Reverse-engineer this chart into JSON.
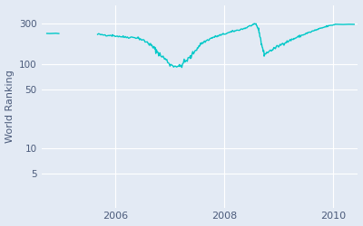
{
  "ylabel": "World Ranking",
  "bg_color": "#e3eaf4",
  "line_color": "#00c8c8",
  "line_width": 1.0,
  "yticks": [
    5,
    10,
    50,
    100,
    300
  ],
  "ylim_bottom": 2,
  "ylim_top": 500,
  "xlim": [
    2004.65,
    2010.45
  ],
  "xticks": [
    2006,
    2008,
    2010
  ],
  "grid_color": "#ffffff",
  "segments": [
    [
      2004.75,
      2004.97,
      230,
      230,
      5,
      1
    ],
    [
      2005.68,
      2005.95,
      225,
      218,
      15,
      3
    ],
    [
      2005.95,
      2006.15,
      218,
      210,
      12,
      3
    ],
    [
      2006.15,
      2006.42,
      210,
      205,
      15,
      3
    ],
    [
      2006.42,
      2006.62,
      205,
      175,
      15,
      4
    ],
    [
      2006.62,
      2006.82,
      175,
      130,
      20,
      5
    ],
    [
      2006.82,
      2007.02,
      130,
      98,
      15,
      4
    ],
    [
      2007.02,
      2007.18,
      98,
      93,
      10,
      3
    ],
    [
      2007.18,
      2007.38,
      93,
      120,
      15,
      4
    ],
    [
      2007.38,
      2007.58,
      120,
      175,
      15,
      4
    ],
    [
      2007.58,
      2007.78,
      175,
      205,
      15,
      3
    ],
    [
      2007.78,
      2007.98,
      205,
      225,
      15,
      3
    ],
    [
      2007.98,
      2008.18,
      225,
      245,
      15,
      3
    ],
    [
      2008.18,
      2008.38,
      245,
      265,
      15,
      3
    ],
    [
      2008.38,
      2008.52,
      265,
      292,
      10,
      3
    ],
    [
      2008.52,
      2008.58,
      292,
      297,
      5,
      2
    ],
    [
      2008.58,
      2008.63,
      297,
      255,
      8,
      4
    ],
    [
      2008.63,
      2008.68,
      255,
      175,
      8,
      5
    ],
    [
      2008.68,
      2008.73,
      175,
      130,
      8,
      4
    ],
    [
      2008.73,
      2008.88,
      130,
      148,
      10,
      3
    ],
    [
      2008.88,
      2009.08,
      148,
      175,
      15,
      3
    ],
    [
      2009.08,
      2009.28,
      175,
      200,
      15,
      3
    ],
    [
      2009.28,
      2009.52,
      200,
      232,
      20,
      3
    ],
    [
      2009.52,
      2009.72,
      232,
      258,
      15,
      3
    ],
    [
      2009.72,
      2009.9,
      258,
      282,
      15,
      3
    ],
    [
      2009.9,
      2010.05,
      282,
      296,
      10,
      2
    ],
    [
      2010.18,
      2010.38,
      295,
      296,
      5,
      1
    ]
  ]
}
